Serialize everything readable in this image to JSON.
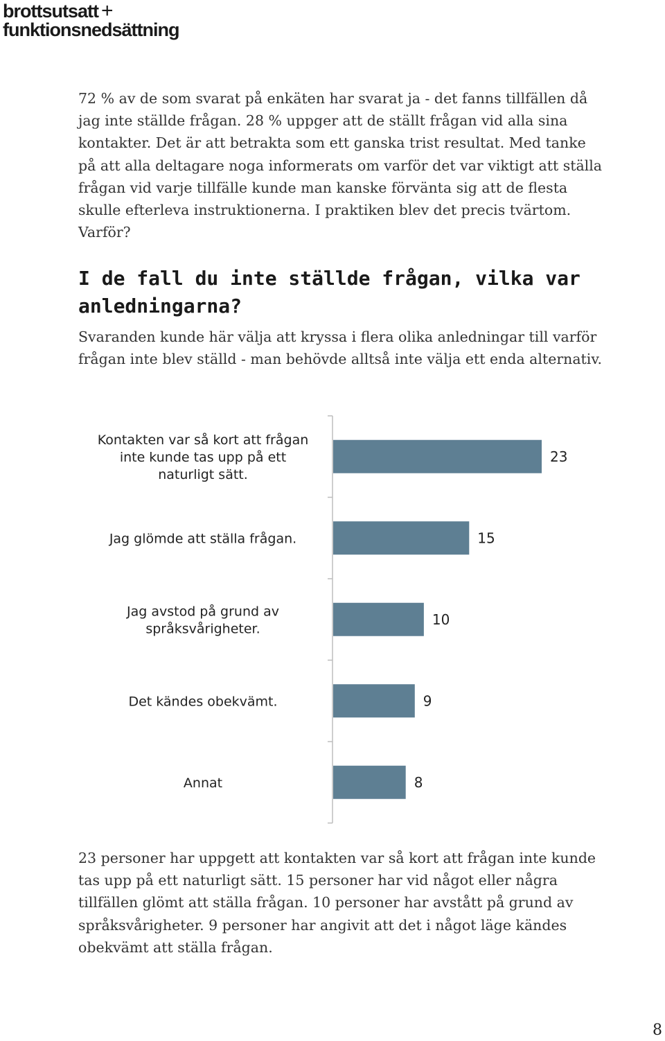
{
  "header": {
    "logo_line1": "brottsutsatt",
    "logo_plus": "+",
    "logo_line2": "funktionsnedsättning"
  },
  "paragraphs": {
    "intro": "72 % av de som svarat på enkäten har svarat ja - det fanns tillfällen då jag inte ställde frågan. 28 % uppger att de ställt frågan vid alla sina kontakter. Det är att betrakta som ett ganska trist resultat. Med tanke på att alla deltagare noga informerats om varför det var viktigt att ställa frågan vid varje tillfälle kunde man kanske förvänta sig att de flesta skulle efterleva instruktionerna. I praktiken blev det precis tvärtom. Varför?",
    "heading": "I de fall du inte ställde frågan, vilka var anledningarna?",
    "explanation": "Svaranden kunde här välja att kryssa i flera olika anledningar till varför frågan inte blev ställd - man behövde alltså inte välja ett enda alternativ.",
    "summary": "23 personer har uppgett att kontakten var så kort att frågan inte kunde tas upp på ett naturligt sätt. 15 personer har vid något eller några tillfällen glömt att ställa frågan. 10 personer har avstått på grund av språksvårigheter. 9 personer har angivit att det i något läge kändes obekvämt att ställa frågan."
  },
  "chart_data": {
    "type": "bar",
    "orientation": "horizontal",
    "categories": [
      [
        "Kontakten var så kort att frågan",
        "inte kunde tas upp på ett",
        "naturligt sätt."
      ],
      [
        "Jag glömde att ställa frågan."
      ],
      [
        "Jag avstod på grund av",
        "språksvårigheter."
      ],
      [
        "Det kändes obekvämt."
      ],
      [
        "Annat"
      ]
    ],
    "values": [
      23,
      15,
      10,
      9,
      8
    ],
    "value_labels": [
      "23",
      "15",
      "10",
      "9",
      "8"
    ],
    "xlim": [
      0,
      25
    ],
    "grid": false,
    "bar_color": "#5e7f93",
    "axis_color": "#bdbdbd"
  },
  "footer": {
    "page_number": "8"
  }
}
